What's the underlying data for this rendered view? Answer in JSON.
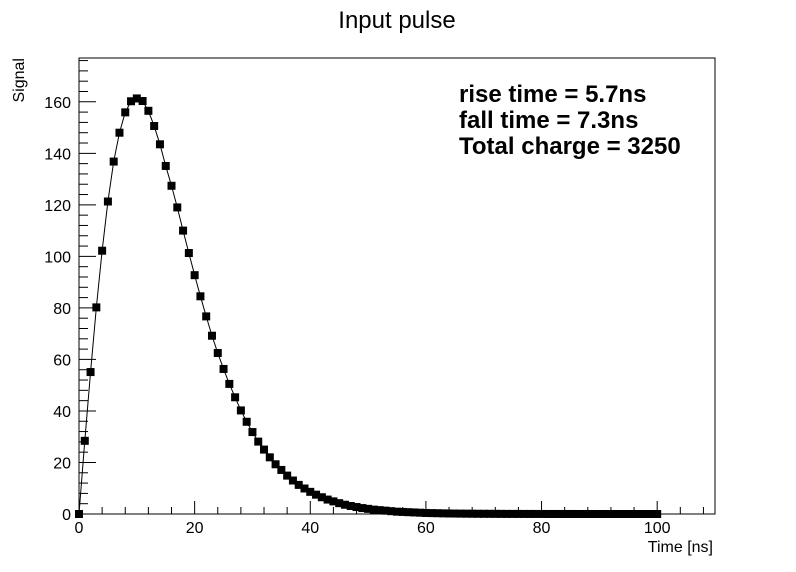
{
  "chart_data": {
    "type": "line",
    "title": "Input pulse",
    "xlabel": "Time [ns]",
    "ylabel": "Signal",
    "xlim": [
      0,
      110
    ],
    "ylim": [
      0,
      177
    ],
    "x_ticks": [
      0,
      20,
      40,
      60,
      80,
      100
    ],
    "y_ticks": [
      0,
      20,
      40,
      60,
      80,
      100,
      120,
      140,
      160
    ],
    "grid": false,
    "annotations": [
      "rise time = 5.7ns",
      "fall time = 7.3ns",
      "Total charge = 3250"
    ],
    "series": [
      {
        "marker": "square",
        "color": "#000000",
        "x": [
          0,
          1,
          2,
          3,
          4,
          5,
          6,
          7,
          8,
          9,
          10,
          11,
          12,
          13,
          14,
          15,
          16,
          17,
          18,
          19,
          20,
          21,
          22,
          23,
          24,
          25,
          26,
          27,
          28,
          29,
          30,
          31,
          32,
          33,
          34,
          35,
          36,
          37,
          38,
          39,
          40,
          41,
          42,
          43,
          44,
          45,
          46,
          47,
          48,
          49,
          50,
          51,
          52,
          53,
          54,
          55,
          56,
          57,
          58,
          59,
          60,
          61,
          62,
          63,
          64,
          65,
          66,
          67,
          68,
          69,
          70,
          71,
          72,
          73,
          74,
          75,
          76,
          77,
          78,
          79,
          80,
          81,
          82,
          83,
          84,
          85,
          86,
          87,
          88,
          89,
          90,
          91,
          92,
          93,
          94,
          95,
          96,
          97,
          98,
          99,
          100
        ],
        "y": [
          0,
          28.4,
          55.1,
          80.2,
          102.2,
          121.3,
          136.8,
          148.0,
          155.9,
          160.2,
          161.3,
          160.3,
          156.5,
          150.6,
          143.5,
          135.1,
          127.4,
          119.0,
          110.0,
          101.3,
          92.7,
          84.5,
          76.7,
          69.2,
          62.5,
          56.3,
          50.5,
          45.3,
          40.2,
          35.8,
          31.8,
          28.1,
          25.0,
          22.0,
          19.3,
          17.1,
          14.9,
          13.0,
          11.3,
          9.9,
          8.6,
          7.5,
          6.5,
          5.6,
          4.9,
          4.2,
          3.6,
          3.1,
          2.7,
          2.3,
          2.0,
          1.7,
          1.5,
          1.3,
          1.1,
          0.9,
          0.8,
          0.7,
          0.6,
          0.5,
          0.4,
          0.35,
          0.3,
          0.25,
          0.2,
          0.18,
          0.15,
          0.13,
          0.11,
          0.09,
          0.08,
          0.07,
          0.06,
          0.05,
          0.04,
          0.035,
          0.03,
          0.025,
          0.02,
          0.018,
          0.015,
          0.013,
          0.011,
          0.009,
          0.008,
          0.007,
          0.006,
          0.005,
          0.004,
          0.0035,
          0.003,
          0.0025,
          0.002,
          0.0018,
          0.0015,
          0.0013,
          0.0011,
          0.0009,
          0.0008,
          0.0007,
          0.0006
        ]
      }
    ]
  }
}
